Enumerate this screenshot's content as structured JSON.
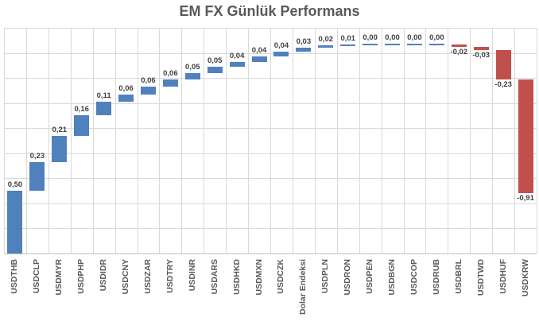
{
  "chart_data": {
    "type": "bar",
    "subtype": "waterfall",
    "title": "EM FX Günlük Performans",
    "categories": [
      "USDTHB",
      "USDCLP",
      "USDMYR",
      "USDPHP",
      "USDIDR",
      "USDCNY",
      "USDZAR",
      "USDTRY",
      "USDINR",
      "USDARS",
      "USDHKD",
      "USDMXN",
      "USDCZK",
      "Dolar Endeksi",
      "USDPLN",
      "USDRON",
      "USDPEN",
      "USDBGN",
      "USDCOP",
      "USDRUB",
      "USDBRL",
      "USDTWD",
      "USDHUF",
      "USDKRW"
    ],
    "values": [
      0.5,
      0.23,
      0.21,
      0.16,
      0.11,
      0.06,
      0.06,
      0.06,
      0.05,
      0.05,
      0.04,
      0.04,
      0.04,
      0.03,
      0.02,
      0.01,
      0.0,
      0.0,
      0.0,
      0.0,
      -0.02,
      -0.03,
      -0.23,
      -0.91
    ],
    "value_labels": [
      "0,50",
      "0,23",
      "0,21",
      "0,16",
      "0,11",
      "0,06",
      "0,06",
      "0,06",
      "0,05",
      "0,05",
      "0,04",
      "0,04",
      "0,04",
      "0,03",
      "0,02",
      "0,01",
      "0,00",
      "0,00",
      "0,00",
      "0,00",
      "-0,02",
      "-0,03",
      "-0,23",
      "-0,91"
    ],
    "xlabel": "",
    "ylabel": "",
    "ylim": [
      0,
      1.8
    ],
    "gridline_interval": 0.2,
    "grid": "both",
    "legend": "none",
    "colors": {
      "positive_bar": "#4F81BD",
      "negative_bar": "#C0504D",
      "gridline": "#D9D9D9",
      "axis_line": "#BFBFBF",
      "title_text": "#595959",
      "value_label_text": "#404040",
      "category_label_text": "#595959",
      "background": "#FFFFFF"
    }
  }
}
